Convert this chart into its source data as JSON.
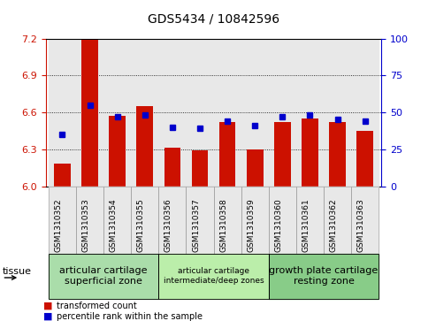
{
  "title": "GDS5434 / 10842596",
  "samples": [
    "GSM1310352",
    "GSM1310353",
    "GSM1310354",
    "GSM1310355",
    "GSM1310356",
    "GSM1310357",
    "GSM1310358",
    "GSM1310359",
    "GSM1310360",
    "GSM1310361",
    "GSM1310362",
    "GSM1310363"
  ],
  "red_values": [
    6.18,
    7.19,
    6.57,
    6.65,
    6.31,
    6.29,
    6.52,
    6.3,
    6.52,
    6.55,
    6.52,
    6.45
  ],
  "blue_values": [
    35,
    55,
    47,
    48,
    40,
    39,
    44,
    41,
    47,
    48,
    45,
    44
  ],
  "ymin": 6.0,
  "ymax": 7.2,
  "yticks": [
    6.0,
    6.3,
    6.6,
    6.9,
    7.2
  ],
  "y2min": 0,
  "y2max": 100,
  "y2ticks": [
    0,
    25,
    50,
    75,
    100
  ],
  "bar_color": "#cc1100",
  "dot_color": "#0000cc",
  "groups": [
    {
      "label": "articular cartilage\nsuperficial zone",
      "start": 0,
      "end": 3,
      "color": "#aaddaa"
    },
    {
      "label": "articular cartilage\nintermediate/deep zones",
      "start": 4,
      "end": 7,
      "color": "#bbeeaa"
    },
    {
      "label": "growth plate cartilage\nresting zone",
      "start": 8,
      "end": 11,
      "color": "#88cc88"
    }
  ],
  "legend_red": "transformed count",
  "legend_blue": "percentile rank within the sample",
  "tissue_label": "tissue",
  "bar_color_left": "#cc1100",
  "y2label_color": "#0000cc",
  "bar_width": 0.6,
  "bg_color": "#e8e8e8"
}
